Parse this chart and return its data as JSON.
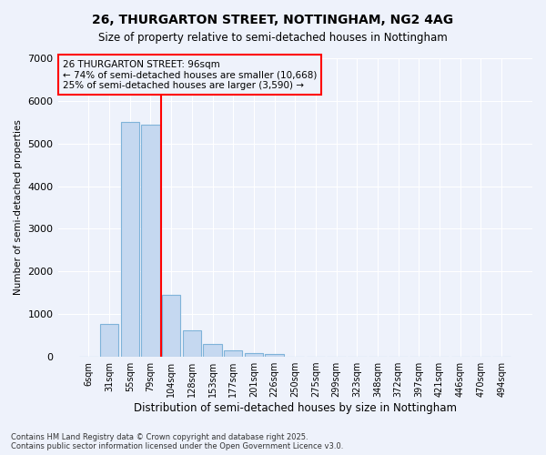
{
  "title": "26, THURGARTON STREET, NOTTINGHAM, NG2 4AG",
  "subtitle": "Size of property relative to semi-detached houses in Nottingham",
  "xlabel": "Distribution of semi-detached houses by size in Nottingham",
  "ylabel": "Number of semi-detached properties",
  "categories": [
    "6sqm",
    "31sqm",
    "55sqm",
    "79sqm",
    "104sqm",
    "128sqm",
    "153sqm",
    "177sqm",
    "201sqm",
    "226sqm",
    "250sqm",
    "275sqm",
    "299sqm",
    "323sqm",
    "348sqm",
    "372sqm",
    "397sqm",
    "421sqm",
    "446sqm",
    "470sqm",
    "494sqm"
  ],
  "values": [
    10,
    770,
    5500,
    5450,
    1450,
    620,
    300,
    150,
    80,
    60,
    0,
    0,
    0,
    0,
    0,
    0,
    0,
    0,
    0,
    0,
    0
  ],
  "bar_color": "#c5d8f0",
  "bar_edge_color": "#7fb3d9",
  "vline_color": "red",
  "vline_position": 3.5,
  "annotation_title": "26 THURGARTON STREET: 96sqm",
  "annotation_line1": "← 74% of semi-detached houses are smaller (10,668)",
  "annotation_line2": "25% of semi-detached houses are larger (3,590) →",
  "annotation_box_color": "red",
  "ylim": [
    0,
    7000
  ],
  "yticks": [
    0,
    1000,
    2000,
    3000,
    4000,
    5000,
    6000,
    7000
  ],
  "background_color": "#eef2fb",
  "grid_color": "#ffffff",
  "footer_line1": "Contains HM Land Registry data © Crown copyright and database right 2025.",
  "footer_line2": "Contains public sector information licensed under the Open Government Licence v3.0."
}
